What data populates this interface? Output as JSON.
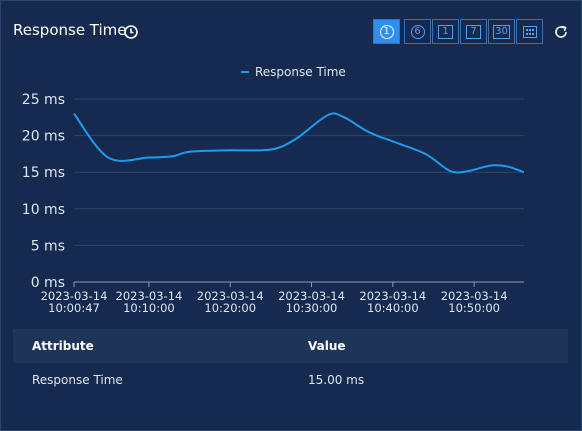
{
  "header": {
    "title": "Response Time"
  },
  "buttons": [
    "1",
    "6",
    "1",
    "7",
    "30"
  ],
  "chart_data": {
    "type": "line",
    "x": [
      "2023-03-14 10:00:47",
      "2023-03-14 10:05:00",
      "2023-03-14 10:10:00",
      "2023-03-14 10:13:00",
      "2023-03-14 10:15:00",
      "2023-03-14 10:20:00",
      "2023-03-14 10:25:00",
      "2023-03-14 10:28:00",
      "2023-03-14 10:32:00",
      "2023-03-14 10:34:00",
      "2023-03-14 10:37:00",
      "2023-03-14 10:40:00",
      "2023-03-14 10:44:00",
      "2023-03-14 10:47:00",
      "2023-03-14 10:49:00",
      "2023-03-14 10:52:00",
      "2023-03-14 10:54:00",
      "2023-03-14 10:56:08"
    ],
    "series": [
      {
        "name": "Response Time",
        "color": "#1e9bef",
        "values": [
          23,
          17,
          17,
          17.2,
          17.8,
          18,
          18.1,
          19.5,
          22.8,
          22.5,
          20.5,
          19.2,
          17.5,
          15.2,
          15.1,
          15.9,
          15.8,
          15
        ]
      }
    ],
    "xlim": [
      "2023-03-14 10:00:47",
      "2023-03-14 10:56:08"
    ],
    "xticks": [
      "2023-03-14 10:00:47",
      "2023-03-14 10:10:00",
      "2023-03-14 10:20:00",
      "2023-03-14 10:30:00",
      "2023-03-14 10:40:00",
      "2023-03-14 10:50:00"
    ],
    "ylim": [
      0,
      25
    ],
    "yticks": [
      {
        "value": 0,
        "label": "0 ms"
      },
      {
        "value": 5,
        "label": "5 ms"
      },
      {
        "value": 10,
        "label": "10 ms"
      },
      {
        "value": 15,
        "label": "15 ms"
      },
      {
        "value": 20,
        "label": "20 ms"
      },
      {
        "value": 25,
        "label": "25 ms"
      }
    ],
    "grid": true
  },
  "table": {
    "columns": [
      "Attribute",
      "Value"
    ],
    "rows": [
      [
        "Response Time",
        "15.00 ms"
      ]
    ]
  }
}
